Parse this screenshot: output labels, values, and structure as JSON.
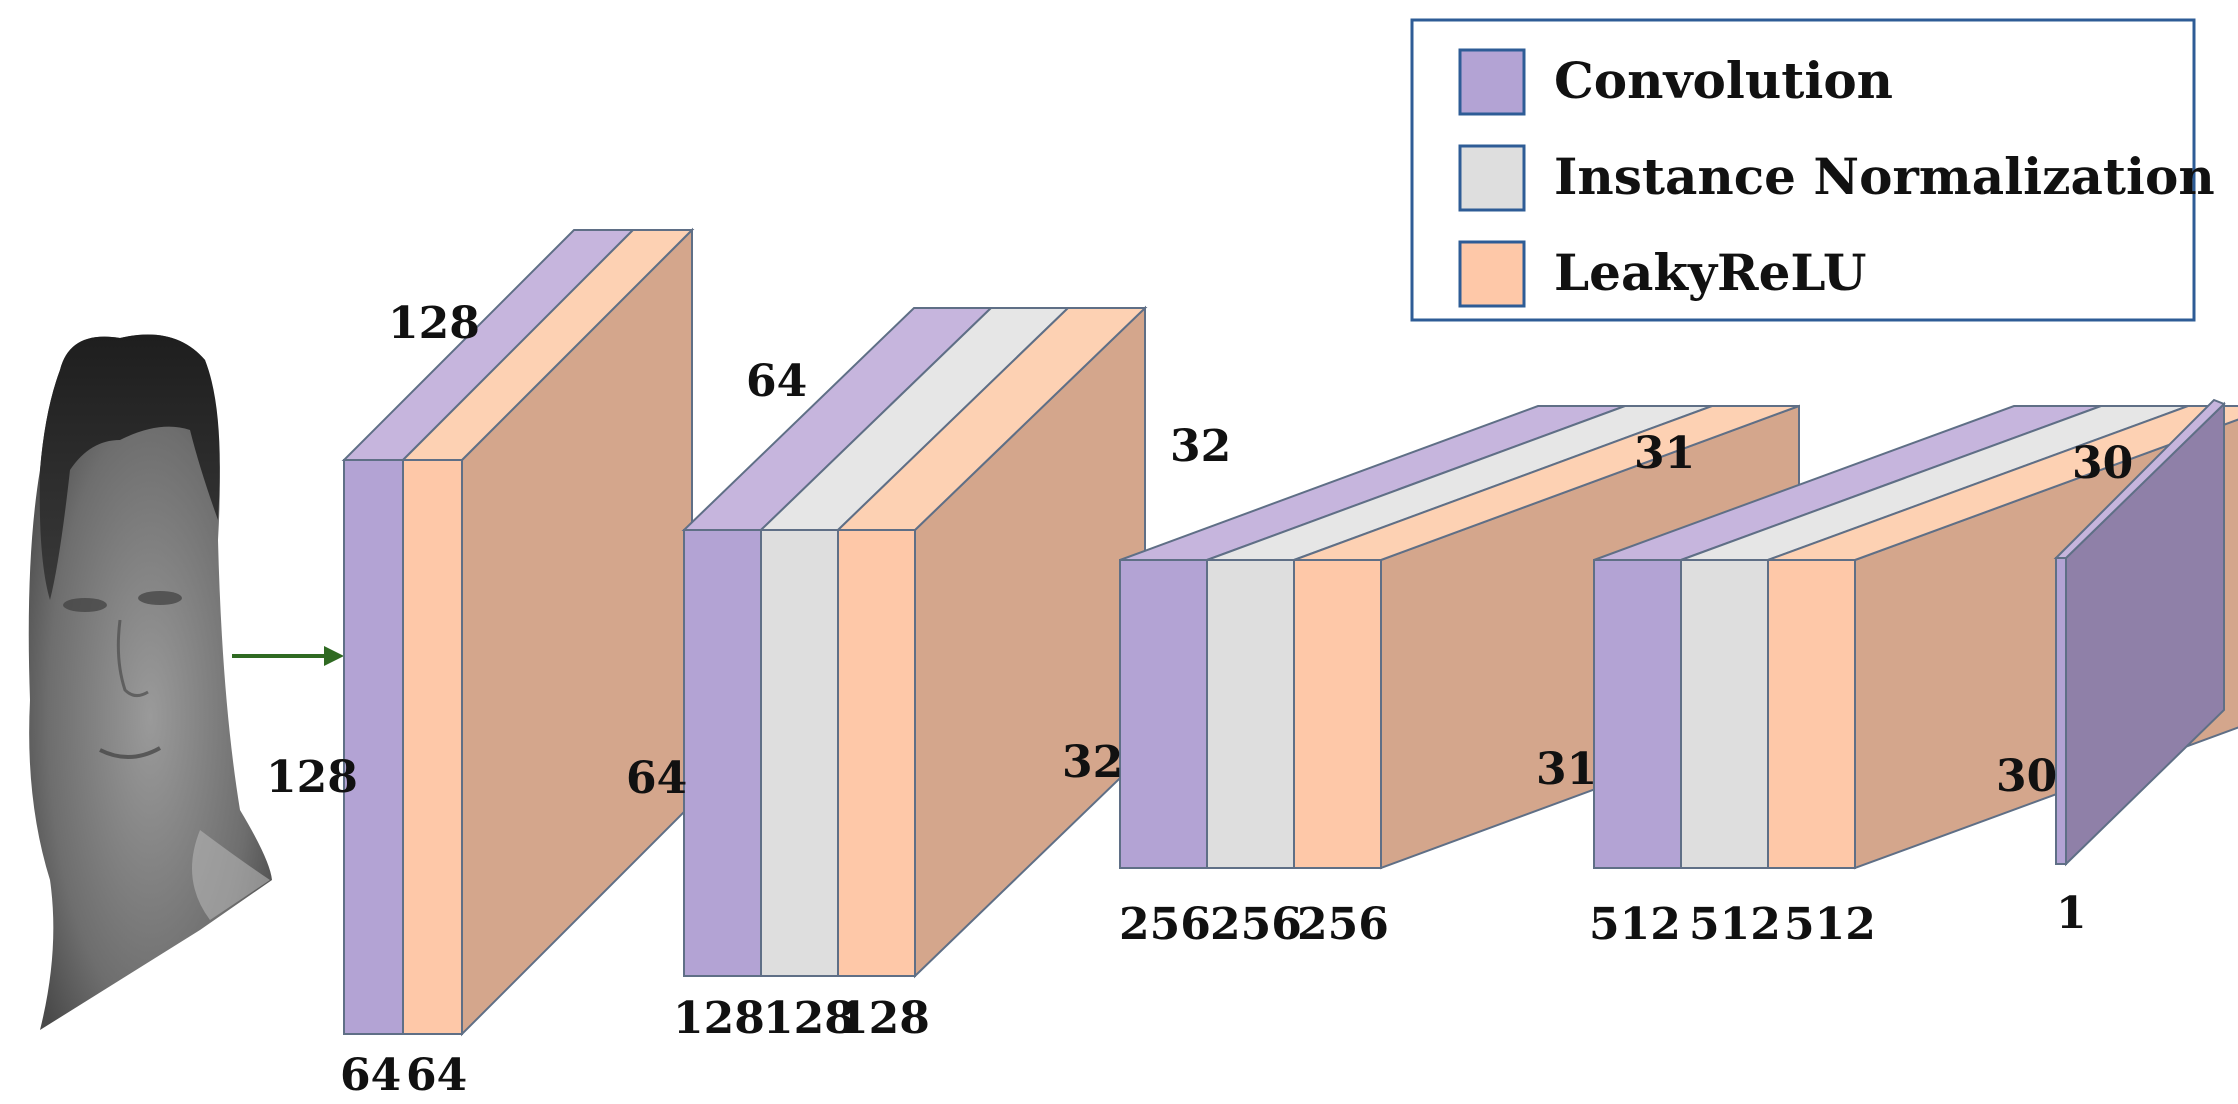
{
  "colors": {
    "convolution": "#b3a3d4",
    "convolution_top": "#c6b5dd",
    "instance_norm": "#dedede",
    "leaky_relu": "#fec8a8",
    "side_face": "#d4a68c",
    "output_face": "#8f80a8",
    "arrow": "#2f6a22",
    "legend_border": "#2e5c96",
    "swatch_border": "#2e5c96",
    "edge": "#5f6f86"
  },
  "legend": {
    "items": [
      {
        "label": "Convolution",
        "color_key": "convolution"
      },
      {
        "label": "Instance Normalization",
        "color_key": "instance_norm"
      },
      {
        "label": "LeakyReLU",
        "color_key": "leaky_relu"
      }
    ]
  },
  "input_image": {
    "description_icon": "face-image-icon"
  },
  "blocks": [
    {
      "layers": [
        "convolution",
        "leaky_relu"
      ],
      "top_label": "128",
      "left_label": "128",
      "bottom_labels": [
        "64",
        "64"
      ]
    },
    {
      "layers": [
        "convolution",
        "instance_norm",
        "leaky_relu"
      ],
      "top_label": "64",
      "left_label": "64",
      "bottom_labels": [
        "128",
        "128",
        "128"
      ]
    },
    {
      "layers": [
        "convolution",
        "instance_norm",
        "leaky_relu"
      ],
      "top_label": "32",
      "left_label": "32",
      "bottom_labels": [
        "256",
        "256",
        "256"
      ]
    },
    {
      "layers": [
        "convolution",
        "instance_norm",
        "leaky_relu"
      ],
      "top_label": "31",
      "left_label": "31",
      "bottom_labels": [
        "512",
        "512",
        "512"
      ]
    }
  ],
  "output": {
    "top_label": "30",
    "left_label": "30",
    "bottom_label": "1"
  }
}
